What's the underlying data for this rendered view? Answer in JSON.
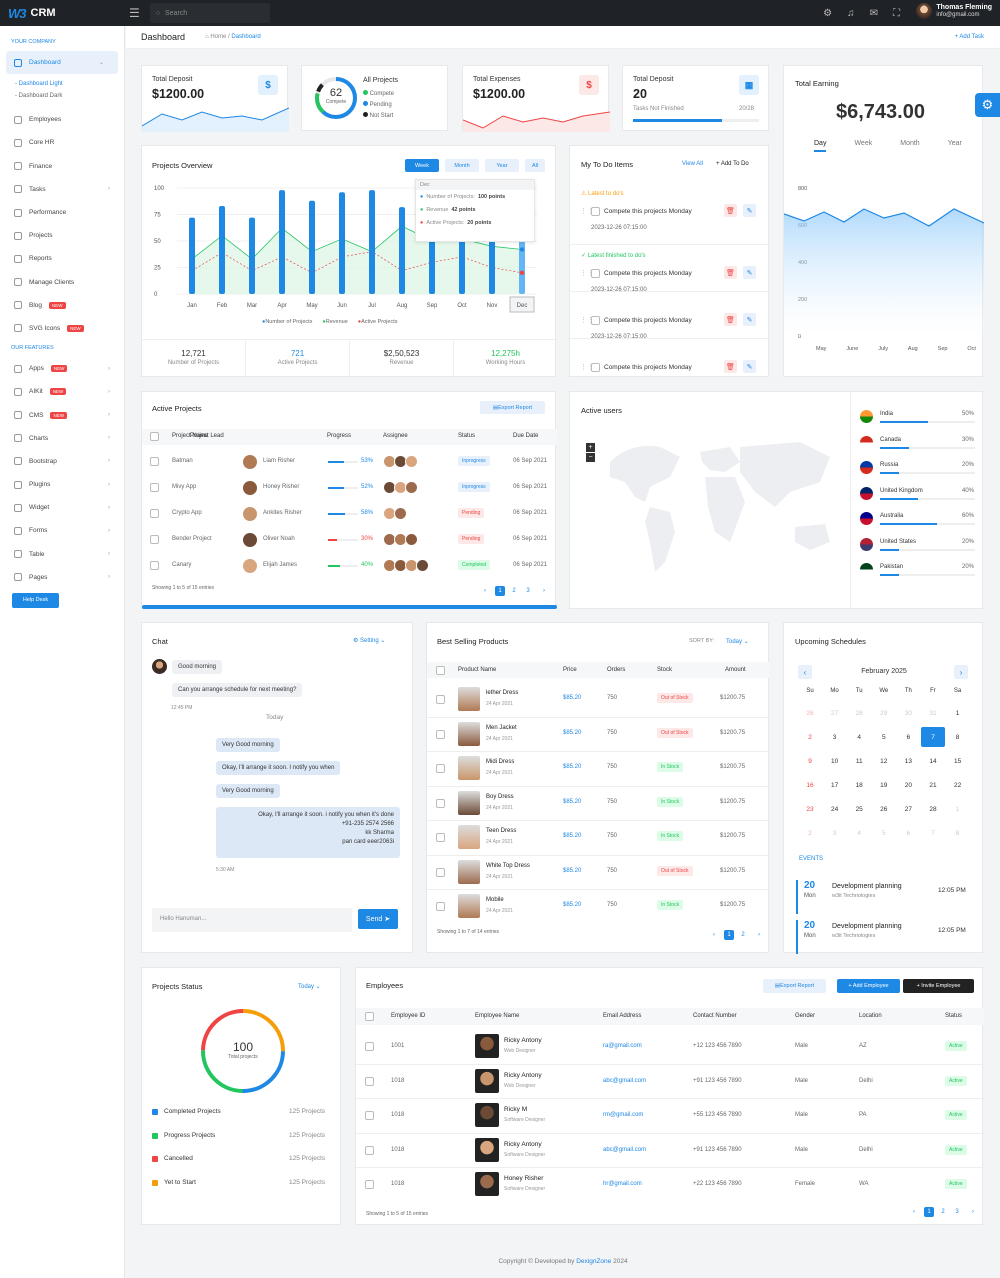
{
  "app": {
    "logo_mark": "W3",
    "name": "CRM",
    "search_placeholder": "Search",
    "user_name": "Thomas Fleming",
    "user_email": "info@gmail.com"
  },
  "breadcrumb": {
    "title": "Dashboard",
    "home": "Home",
    "sep": "/",
    "current": "Dashboard",
    "add_task": "+ Add Task"
  },
  "sidebar": {
    "company_heading": "YOUR COMPANY",
    "dashboard": "Dashboard",
    "sub1": "- Dashboard Light",
    "sub2": "- Dashboard Dark",
    "items": [
      "Employees",
      "Core HR",
      "Finance",
      "Tasks",
      "Performance",
      "Projects",
      "Reports",
      "Manage Clients",
      "Blog",
      "SVG Icons"
    ],
    "features_heading": "OUR FEATURES",
    "features": [
      "Apps",
      "AIKit",
      "CMS",
      "Charts",
      "Bootstrap",
      "Plugins",
      "Widget",
      "Forms",
      "Table",
      "Pages"
    ],
    "new_label": "NEW",
    "help": "Help Desk"
  },
  "stats": {
    "deposit_label": "Total Deposit",
    "deposit_value": "$1200.00",
    "deposit_icon": "$",
    "projects_num": "62",
    "projects_sub": "Compete",
    "projects_title": "All Projects",
    "legend": [
      "Compete",
      "Pending",
      "Not Start"
    ],
    "expense_label": "Total Expenses",
    "expense_value": "$1200.00",
    "expense_icon": "$",
    "deposit2_label": "Total Deposit",
    "deposit2_value": "20",
    "tasks_label": "Tasks Not Finished",
    "tasks_ratio": "20/28",
    "tasks_progress": 0.71
  },
  "earning": {
    "title": "Total Earning",
    "value": "$6,743.00",
    "tabs": [
      "Day",
      "Week",
      "Month",
      "Year"
    ],
    "yticks": [
      "800",
      "600",
      "400",
      "200",
      "0"
    ],
    "xticks": [
      "May",
      "June",
      "July",
      "Aug",
      "Sep",
      "Oct"
    ]
  },
  "overview": {
    "title": "Projects Overview",
    "tabs": [
      "Week",
      "Month",
      "Year",
      "All"
    ],
    "yticks": [
      "100",
      "75",
      "50",
      "25",
      "0"
    ],
    "months": [
      "Jan",
      "Feb",
      "Mar",
      "Apr",
      "May",
      "Jun",
      "Jul",
      "Aug",
      "Sep",
      "Oct",
      "Nov",
      "Dec"
    ],
    "legend": [
      "Number of Projects",
      "Revenue",
      "Active Projects"
    ],
    "tooltip": {
      "title": "Dec",
      "l1": "Number of Projects:",
      "v1": "100 points",
      "l2": "Revenue",
      "v2": "42 points",
      "l3": "Active Projects:",
      "v3": "20 points"
    },
    "footer": [
      {
        "v": "12,721",
        "l": "Number of Projects"
      },
      {
        "v": "721",
        "l": "Active Projects"
      },
      {
        "v": "$2,50,523",
        "l": "Revenue"
      },
      {
        "v": "12,275h",
        "l": "Working Hours"
      }
    ]
  },
  "chart_data": {
    "type": "bar",
    "categories": [
      "Jan",
      "Feb",
      "Mar",
      "Apr",
      "May",
      "Jun",
      "Jul",
      "Aug",
      "Sep",
      "Oct",
      "Nov",
      "Dec"
    ],
    "ylim": [
      0,
      100
    ],
    "series": [
      {
        "name": "Number of Projects",
        "values": [
          72,
          83,
          72,
          98,
          88,
          96,
          98,
          82,
          96,
          97,
          95,
          100
        ]
      },
      {
        "name": "Revenue",
        "values": [
          33,
          55,
          33,
          62,
          40,
          52,
          40,
          64,
          50,
          52,
          45,
          42
        ]
      },
      {
        "name": "Active Projects",
        "values": [
          22,
          39,
          22,
          35,
          20,
          35,
          40,
          22,
          30,
          35,
          25,
          20
        ]
      }
    ]
  },
  "todo": {
    "title": "My To Do Items",
    "view_all": "View All",
    "add": "+ Add To Do",
    "latest": "Latest to do's",
    "finished": "Latest finished to do's",
    "items": [
      {
        "text": "Compete this projects Monday",
        "date": "2023-12-26 07:15:00"
      },
      {
        "text": "Compete this projects Monday",
        "date": "2023-12-26 07:15:00"
      },
      {
        "text": "Compete this projects Monday",
        "date": "2023-12-26 07:15:00"
      },
      {
        "text": "Compete this projects Monday",
        "date": ""
      }
    ]
  },
  "active_projects": {
    "title": "Active Projects",
    "export": "Export Report",
    "headers": [
      "Project Name",
      "Project Lead",
      "Progress",
      "Assignee",
      "Status",
      "Due Date"
    ],
    "rows": [
      {
        "name": "Batman",
        "lead": "Liam Risher",
        "pct": "53%",
        "status": "Inprogress",
        "due": "06 Sep 2021",
        "pc": 0.53
      },
      {
        "name": "Mivy App",
        "lead": "Honey Risher",
        "pct": "52%",
        "status": "Inprogress",
        "due": "06 Sep 2021",
        "pc": 0.52
      },
      {
        "name": "Crypto App",
        "lead": "Ankites Risher",
        "pct": "58%",
        "status": "Pending",
        "due": "06 Sep 2021",
        "pc": 0.58
      },
      {
        "name": "Bender Project",
        "lead": "Oliver Noah",
        "pct": "30%",
        "status": "Pending",
        "due": "06 Sep 2021",
        "pc": 0.3
      },
      {
        "name": "Canary",
        "lead": "Elijah James",
        "pct": "40%",
        "status": "Completed",
        "due": "06 Sep 2021",
        "pc": 0.4
      }
    ],
    "showing": "Showing 1 to 5 of 15 entries",
    "pages": [
      "1",
      "2",
      "3"
    ]
  },
  "active_users": {
    "title": "Active users",
    "countries": [
      {
        "n": "India",
        "p": "50%",
        "v": 0.5
      },
      {
        "n": "Canada",
        "p": "30%",
        "v": 0.3
      },
      {
        "n": "Russia",
        "p": "20%",
        "v": 0.2
      },
      {
        "n": "United Kingdom",
        "p": "40%",
        "v": 0.4
      },
      {
        "n": "Australia",
        "p": "60%",
        "v": 0.6
      },
      {
        "n": "United States",
        "p": "20%",
        "v": 0.2
      },
      {
        "n": "Pakistan",
        "p": "20%",
        "v": 0.2
      }
    ]
  },
  "chat": {
    "title": "Chat",
    "setting": "Setting",
    "msgs_in": [
      "Good morning",
      "Can you arrange schedule for next meeting?"
    ],
    "time1": "12:45 PM",
    "today": "Today",
    "msgs_out": [
      "Very Good morning",
      "Okay, I'll arrange it soon. I notify you when",
      "Very Good morning",
      "Okay, I'll arrange it soon. i notify you when it's done",
      "+91-235 2574 2566",
      "kk Sharma",
      "pan card eeer2063i"
    ],
    "time2": "5:30 AM",
    "placeholder": "Hello Hanuman...",
    "send": "Send"
  },
  "products": {
    "title": "Best Selling Products",
    "sort": "SORT BY:",
    "sort_val": "Today",
    "headers": [
      "Product Name",
      "Price",
      "Orders",
      "Stock",
      "Amount"
    ],
    "rows": [
      {
        "n": "lether Dress",
        "d": "24 Apr 2021",
        "p": "$85.20",
        "o": "750",
        "s": "Out of Stock",
        "a": "$1200.75"
      },
      {
        "n": "Men Jacket",
        "d": "24 Apr 2021",
        "p": "$85.20",
        "o": "750",
        "s": "Out of Stock",
        "a": "$1200.75"
      },
      {
        "n": "Midi Dress",
        "d": "24 Apr 2021",
        "p": "$85.20",
        "o": "750",
        "s": "In Stock",
        "a": "$1200.75"
      },
      {
        "n": "Boy Dress",
        "d": "24 Apr 2021",
        "p": "$85.20",
        "o": "750",
        "s": "In Stock",
        "a": "$1200.75"
      },
      {
        "n": "Teen Dress",
        "d": "24 Apr 2021",
        "p": "$85.20",
        "o": "750",
        "s": "In Stock",
        "a": "$1200.75"
      },
      {
        "n": "White Top Dress",
        "d": "24 Apr 2021",
        "p": "$85.20",
        "o": "750",
        "s": "Out of Stock",
        "a": "$1200.75"
      },
      {
        "n": "Mobile",
        "d": "24 Apr 2021",
        "p": "$85.20",
        "o": "750",
        "s": "In Stock",
        "a": "$1200.75"
      }
    ],
    "showing": "Showing 1 to 7 of 14 entries",
    "pages": [
      "1",
      "2"
    ]
  },
  "schedule": {
    "title": "Upcoming Schedules",
    "month": "February 2025",
    "days": [
      "Su",
      "Mo",
      "Tu",
      "We",
      "Th",
      "Fr",
      "Sa"
    ],
    "grid": [
      "26",
      "27",
      "28",
      "29",
      "30",
      "31",
      "1",
      "2",
      "3",
      "4",
      "5",
      "6",
      "7",
      "8",
      "9",
      "10",
      "11",
      "12",
      "13",
      "14",
      "15",
      "16",
      "17",
      "18",
      "19",
      "20",
      "21",
      "22",
      "23",
      "24",
      "25",
      "26",
      "27",
      "28",
      "1",
      "2",
      "3",
      "4",
      "5",
      "6",
      "7",
      "8"
    ],
    "events_label": "EVENTS",
    "events": [
      {
        "day": "20",
        "dow": "Mon",
        "t": "Development planning",
        "s": "w3it Technologies",
        "time": "12:05 PM"
      },
      {
        "day": "20",
        "dow": "Mon",
        "t": "Development planning",
        "s": "w3it Technologies",
        "time": "12:05 PM"
      }
    ]
  },
  "proj_status": {
    "title": "Projects Status",
    "today": "Today",
    "total": "100",
    "total_label": "Total projects",
    "rows": [
      {
        "n": "Completed Projects",
        "v": "125 Projects"
      },
      {
        "n": "Progress Projects",
        "v": "125 Projects"
      },
      {
        "n": "Cancelled",
        "v": "125 Projects"
      },
      {
        "n": "Yet to Start",
        "v": "125 Projects"
      }
    ]
  },
  "employees": {
    "title": "Employees",
    "export": "Export Report",
    "add": "+ Add Employee",
    "invite": "+ Invite Employee",
    "headers": [
      "Employee ID",
      "Employee Name",
      "Email Address",
      "Contact Number",
      "Gender",
      "Location",
      "Status"
    ],
    "rows": [
      {
        "id": "1001",
        "n": "Ricky Antony",
        "r": "Web Designer",
        "e": "ra@gmail.com",
        "c": "+12 123 456 7890",
        "g": "Male",
        "l": "AZ",
        "s": "Active"
      },
      {
        "id": "1018",
        "n": "Ricky Antony",
        "r": "Web Designer",
        "e": "abc@gmail.com",
        "c": "+91 123 456 7890",
        "g": "Male",
        "l": "Delhi",
        "s": "Active"
      },
      {
        "id": "1018",
        "n": "Ricky M",
        "r": "Software Designer",
        "e": "rm@gmail.com",
        "c": "+55 123 456 7890",
        "g": "Male",
        "l": "PA",
        "s": "Active"
      },
      {
        "id": "1018",
        "n": "Ricky Antony",
        "r": "Software Designer",
        "e": "abc@gmail.com",
        "c": "+91 123 456 7890",
        "g": "Male",
        "l": "Delhi",
        "s": "Active"
      },
      {
        "id": "1018",
        "n": "Honey Risher",
        "r": "Software Designer",
        "e": "hr@gmail.com",
        "c": "+22 123 456 7890",
        "g": "Female",
        "l": "WA",
        "s": "Active"
      }
    ],
    "showing": "Showing 1 to 5 of 15 entries",
    "pages": [
      "1",
      "2",
      "3"
    ]
  },
  "footer": {
    "text": "Copyright © Developed by",
    "brand": "DexignZone",
    "year": "2024"
  }
}
